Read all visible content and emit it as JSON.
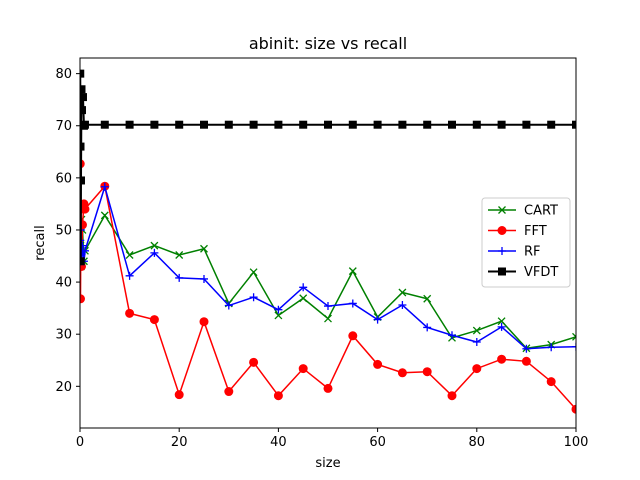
{
  "chart_data": {
    "type": "line",
    "title": "abinit: size vs recall",
    "xlabel": "size",
    "ylabel": "recall",
    "xlim": [
      0,
      100
    ],
    "ylim": [
      12,
      83
    ],
    "x_ticks": [
      0,
      20,
      40,
      60,
      80,
      100
    ],
    "y_ticks": [
      20,
      30,
      40,
      50,
      60,
      70,
      80
    ],
    "grid": false,
    "legend_position": "center-right",
    "series": [
      {
        "name": "CART",
        "color": "#008000",
        "marker": "x",
        "points": [
          [
            0.05,
            55
          ],
          [
            0.1,
            47
          ],
          [
            0.2,
            43
          ],
          [
            0.3,
            52
          ],
          [
            0.5,
            50
          ],
          [
            0.8,
            44
          ],
          [
            1,
            46
          ],
          [
            5,
            52.8
          ],
          [
            10,
            45.2
          ],
          [
            15,
            47
          ],
          [
            20,
            45.2
          ],
          [
            25,
            46.4
          ],
          [
            30,
            35.9
          ],
          [
            35,
            41.9
          ],
          [
            40,
            33.6
          ],
          [
            45,
            36.9
          ],
          [
            50,
            33
          ],
          [
            55,
            42.1
          ],
          [
            60,
            33.3
          ],
          [
            65,
            38
          ],
          [
            70,
            36.8
          ],
          [
            75,
            29.3
          ],
          [
            80,
            30.7
          ],
          [
            85,
            32.5
          ],
          [
            90,
            27.3
          ],
          [
            95,
            28
          ],
          [
            100,
            29.5
          ]
        ]
      },
      {
        "name": "FFT",
        "color": "#ff0000",
        "marker": "circle",
        "points": [
          [
            0.05,
            62.7
          ],
          [
            0.1,
            36.8
          ],
          [
            0.2,
            54
          ],
          [
            0.3,
            43
          ],
          [
            0.5,
            51
          ],
          [
            0.8,
            55
          ],
          [
            1,
            54
          ],
          [
            5,
            58.4
          ],
          [
            10,
            34
          ],
          [
            15,
            32.8
          ],
          [
            20,
            18.4
          ],
          [
            25,
            32.4
          ],
          [
            30,
            19
          ],
          [
            35,
            24.6
          ],
          [
            40,
            18.2
          ],
          [
            45,
            23.4
          ],
          [
            50,
            19.6
          ],
          [
            55,
            29.7
          ],
          [
            60,
            24.2
          ],
          [
            65,
            22.6
          ],
          [
            70,
            22.8
          ],
          [
            75,
            18.2
          ],
          [
            80,
            23.4
          ],
          [
            85,
            25.2
          ],
          [
            90,
            24.8
          ],
          [
            95,
            20.9
          ],
          [
            100,
            15.6
          ]
        ]
      },
      {
        "name": "RF",
        "color": "#0000ff",
        "marker": "plus",
        "points": [
          [
            0.05,
            48
          ],
          [
            0.1,
            45
          ],
          [
            0.2,
            50
          ],
          [
            0.3,
            44
          ],
          [
            0.5,
            47
          ],
          [
            0.8,
            44
          ],
          [
            1,
            46
          ],
          [
            5,
            58.3
          ],
          [
            10,
            41.2
          ],
          [
            15,
            45.6
          ],
          [
            20,
            40.8
          ],
          [
            25,
            40.6
          ],
          [
            30,
            35.5
          ],
          [
            35,
            37.1
          ],
          [
            40,
            34.7
          ],
          [
            45,
            39
          ],
          [
            50,
            35.4
          ],
          [
            55,
            35.9
          ],
          [
            60,
            32.8
          ],
          [
            65,
            35.6
          ],
          [
            70,
            31.3
          ],
          [
            75,
            29.8
          ],
          [
            80,
            28.5
          ],
          [
            85,
            31.4
          ],
          [
            90,
            27.2
          ],
          [
            95,
            27.5
          ],
          [
            100,
            27.6
          ]
        ]
      },
      {
        "name": "VFDT",
        "color": "#000000",
        "marker": "square",
        "points": [
          [
            0.05,
            80
          ],
          [
            0.1,
            66
          ],
          [
            0.15,
            44
          ],
          [
            0.2,
            59.5
          ],
          [
            0.3,
            77
          ],
          [
            0.4,
            73
          ],
          [
            0.6,
            75.5
          ],
          [
            0.8,
            70
          ],
          [
            1,
            70.2
          ],
          [
            5,
            70.2
          ],
          [
            10,
            70.2
          ],
          [
            15,
            70.2
          ],
          [
            20,
            70.2
          ],
          [
            25,
            70.2
          ],
          [
            30,
            70.2
          ],
          [
            35,
            70.2
          ],
          [
            40,
            70.2
          ],
          [
            45,
            70.2
          ],
          [
            50,
            70.2
          ],
          [
            55,
            70.2
          ],
          [
            60,
            70.2
          ],
          [
            65,
            70.2
          ],
          [
            70,
            70.2
          ],
          [
            75,
            70.2
          ],
          [
            80,
            70.2
          ],
          [
            85,
            70.2
          ],
          [
            90,
            70.2
          ],
          [
            95,
            70.2
          ],
          [
            100,
            70.2
          ]
        ]
      }
    ]
  }
}
